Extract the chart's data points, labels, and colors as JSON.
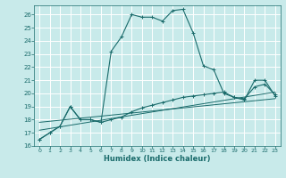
{
  "title": "",
  "xlabel": "Humidex (Indice chaleur)",
  "bg_color": "#c8eaea",
  "grid_color": "#ffffff",
  "line_color": "#1a6b6b",
  "xlim": [
    -0.5,
    23.5
  ],
  "ylim": [
    16,
    26.7
  ],
  "xticks": [
    0,
    1,
    2,
    3,
    4,
    5,
    6,
    7,
    8,
    9,
    10,
    11,
    12,
    13,
    14,
    15,
    16,
    17,
    18,
    19,
    20,
    21,
    22,
    23
  ],
  "yticks": [
    16,
    17,
    18,
    19,
    20,
    21,
    22,
    23,
    24,
    25,
    26
  ],
  "series0_x": [
    0,
    1,
    2,
    3,
    4,
    5,
    6,
    7,
    8,
    9,
    10,
    11,
    12,
    13,
    14,
    15,
    16,
    17,
    18,
    19,
    20,
    21,
    22,
    23
  ],
  "series0_y": [
    16.5,
    17.0,
    17.5,
    19.0,
    18.0,
    18.0,
    17.8,
    23.2,
    24.3,
    26.0,
    25.8,
    25.8,
    25.5,
    26.3,
    26.4,
    24.6,
    22.1,
    21.8,
    20.0,
    19.7,
    19.5,
    21.0,
    21.0,
    19.8
  ],
  "series1_x": [
    0,
    1,
    2,
    3,
    4,
    5,
    6,
    7,
    8,
    9,
    10,
    11,
    12,
    13,
    14,
    15,
    16,
    17,
    18,
    19,
    20,
    21,
    22,
    23
  ],
  "series1_y": [
    16.5,
    17.0,
    17.5,
    19.0,
    18.0,
    18.0,
    17.8,
    18.0,
    18.2,
    18.6,
    18.9,
    19.1,
    19.3,
    19.5,
    19.7,
    19.8,
    19.9,
    20.0,
    20.1,
    19.7,
    19.6,
    20.5,
    20.7,
    19.9
  ],
  "trend0_x": [
    0,
    23
  ],
  "trend0_y": [
    17.2,
    20.1
  ],
  "trend1_x": [
    0,
    23
  ],
  "trend1_y": [
    17.8,
    19.6
  ]
}
